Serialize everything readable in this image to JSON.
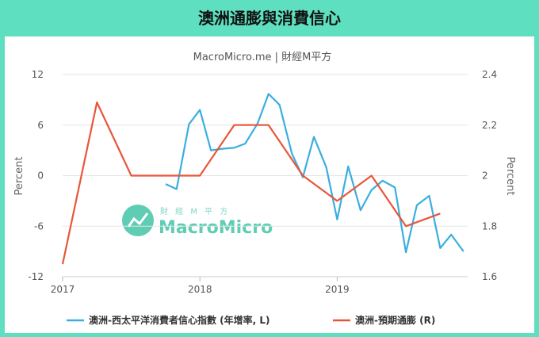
{
  "header": {
    "title": "澳洲通膨與消費信心"
  },
  "chart_data": {
    "type": "line",
    "subtitle": "MacroMicro.me | 財經M平方",
    "watermark": {
      "cn": "財 經 M 平 方",
      "en": "MacroMicro"
    },
    "x_ticks": [
      "2017",
      "2018",
      "2019"
    ],
    "y_left": {
      "label": "Percent",
      "ticks": [
        "12",
        "6",
        "0",
        "-6",
        "-12"
      ],
      "min": -12,
      "max": 12
    },
    "y_right": {
      "label": "Percent",
      "ticks": [
        "2.4",
        "2.2",
        "2",
        "1.8",
        "1.6"
      ],
      "min": 1.6,
      "max": 2.4
    },
    "x_range": [
      2017.0,
      2019.95
    ],
    "series": [
      {
        "name": "澳洲-西太平洋消費者信心指數 (年增率, L)",
        "axis": "left",
        "color": "#3aaee0",
        "x": [
          2017.75,
          2017.83,
          2017.92,
          2018.0,
          2018.08,
          2018.17,
          2018.25,
          2018.33,
          2018.42,
          2018.5,
          2018.58,
          2018.67,
          2018.75,
          2018.83,
          2018.92,
          2019.0,
          2019.08,
          2019.17,
          2019.25,
          2019.33,
          2019.42,
          2019.5,
          2019.58,
          2019.67,
          2019.75,
          2019.83,
          2019.92
        ],
        "y": [
          -1.0,
          -1.6,
          6.1,
          7.8,
          3.0,
          3.2,
          3.3,
          3.8,
          6.2,
          9.7,
          8.4,
          2.6,
          -0.2,
          4.6,
          1.0,
          -5.2,
          1.1,
          -4.1,
          -1.7,
          -0.6,
          -1.4,
          -9.1,
          -3.5,
          -2.4,
          -8.6,
          -7.0,
          -9.0
        ]
      },
      {
        "name": "澳洲-預期通膨 (R)",
        "axis": "right",
        "color": "#e8563a",
        "x": [
          2017.0,
          2017.25,
          2017.5,
          2017.75,
          2018.0,
          2018.25,
          2018.5,
          2018.75,
          2019.0,
          2019.25,
          2019.5,
          2019.75
        ],
        "y": [
          1.65,
          2.29,
          2.0,
          2.0,
          2.0,
          2.2,
          2.2,
          2.0,
          1.9,
          2.0,
          1.8,
          1.85
        ]
      }
    ]
  }
}
